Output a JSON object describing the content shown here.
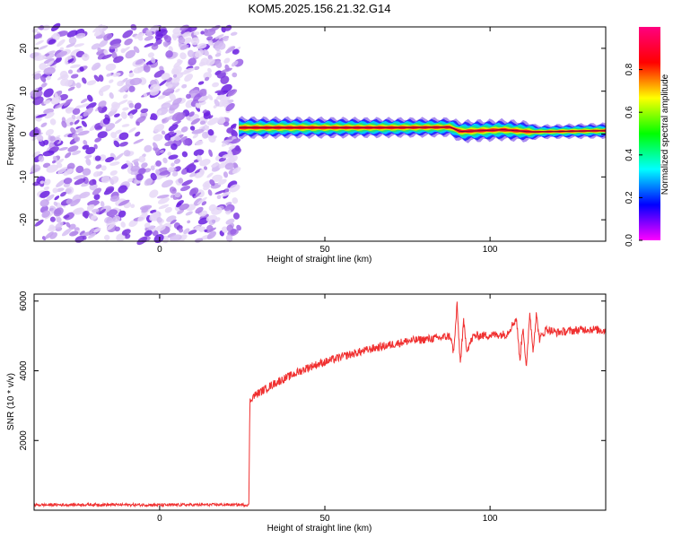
{
  "title": "KOM5.2025.156.21.32.G14",
  "colors": {
    "line": "#f03030",
    "noise": "#9a60e6",
    "axis": "#000000"
  },
  "chart_data": [
    {
      "type": "heatmap",
      "xlabel": "Height of straight line (km)",
      "ylabel": "Frequency (Hz)",
      "xlim": [
        -38,
        135
      ],
      "ylim": [
        -25,
        25
      ],
      "xticks": [
        0,
        50,
        100
      ],
      "yticks": [
        -20,
        -10,
        0,
        10,
        20
      ],
      "colorbar": {
        "label": "Normalized spectral amplitude",
        "range": [
          0,
          1
        ],
        "ticks": [
          0.0,
          0.2,
          0.4,
          0.6,
          0.8
        ],
        "colormap": [
          "#ff00ff",
          "#0000ff",
          "#00ffff",
          "#00ff00",
          "#ffff00",
          "#ff0000",
          "#ff0080"
        ]
      },
      "noise_region": {
        "x_from": -38,
        "x_to": 24
      },
      "signal_band": {
        "x_from": 24,
        "x_to": 135,
        "center_hz": [
          [
            24,
            1.5
          ],
          [
            70,
            1.5
          ],
          [
            88,
            1.6
          ],
          [
            91,
            0.6
          ],
          [
            104,
            1.0
          ],
          [
            113,
            0.5
          ],
          [
            135,
            0.8
          ]
        ],
        "halfwidth_hz": [
          [
            24,
            2.5
          ],
          [
            88,
            2.2
          ],
          [
            92,
            2.6
          ],
          [
            112,
            2.4
          ],
          [
            114,
            1.6
          ],
          [
            135,
            1.8
          ]
        ]
      }
    },
    {
      "type": "line",
      "xlabel": "Height of straight line (km)",
      "ylabel": "SNR (10 * v/v)",
      "xlim": [
        -38,
        135
      ],
      "ylim": [
        0,
        6200
      ],
      "xticks": [
        0,
        50,
        100
      ],
      "yticks": [
        2000,
        4000,
        6000
      ],
      "series": [
        {
          "x": [
            -38,
            -20,
            0,
            20,
            27,
            27.3,
            28,
            35,
            45,
            55,
            65,
            75,
            85,
            88,
            89,
            90,
            91,
            92,
            93,
            95,
            105,
            108,
            109,
            110,
            111,
            112,
            113,
            114,
            115,
            117,
            120,
            130,
            135
          ],
          "y": [
            150,
            160,
            150,
            160,
            150,
            3100,
            3250,
            3650,
            4100,
            4400,
            4650,
            4850,
            4950,
            5000,
            4500,
            5900,
            4200,
            5400,
            4600,
            5000,
            5050,
            5500,
            4300,
            5300,
            4000,
            5700,
            4600,
            5600,
            4900,
            5200,
            5100,
            5200,
            5150
          ]
        }
      ]
    }
  ]
}
